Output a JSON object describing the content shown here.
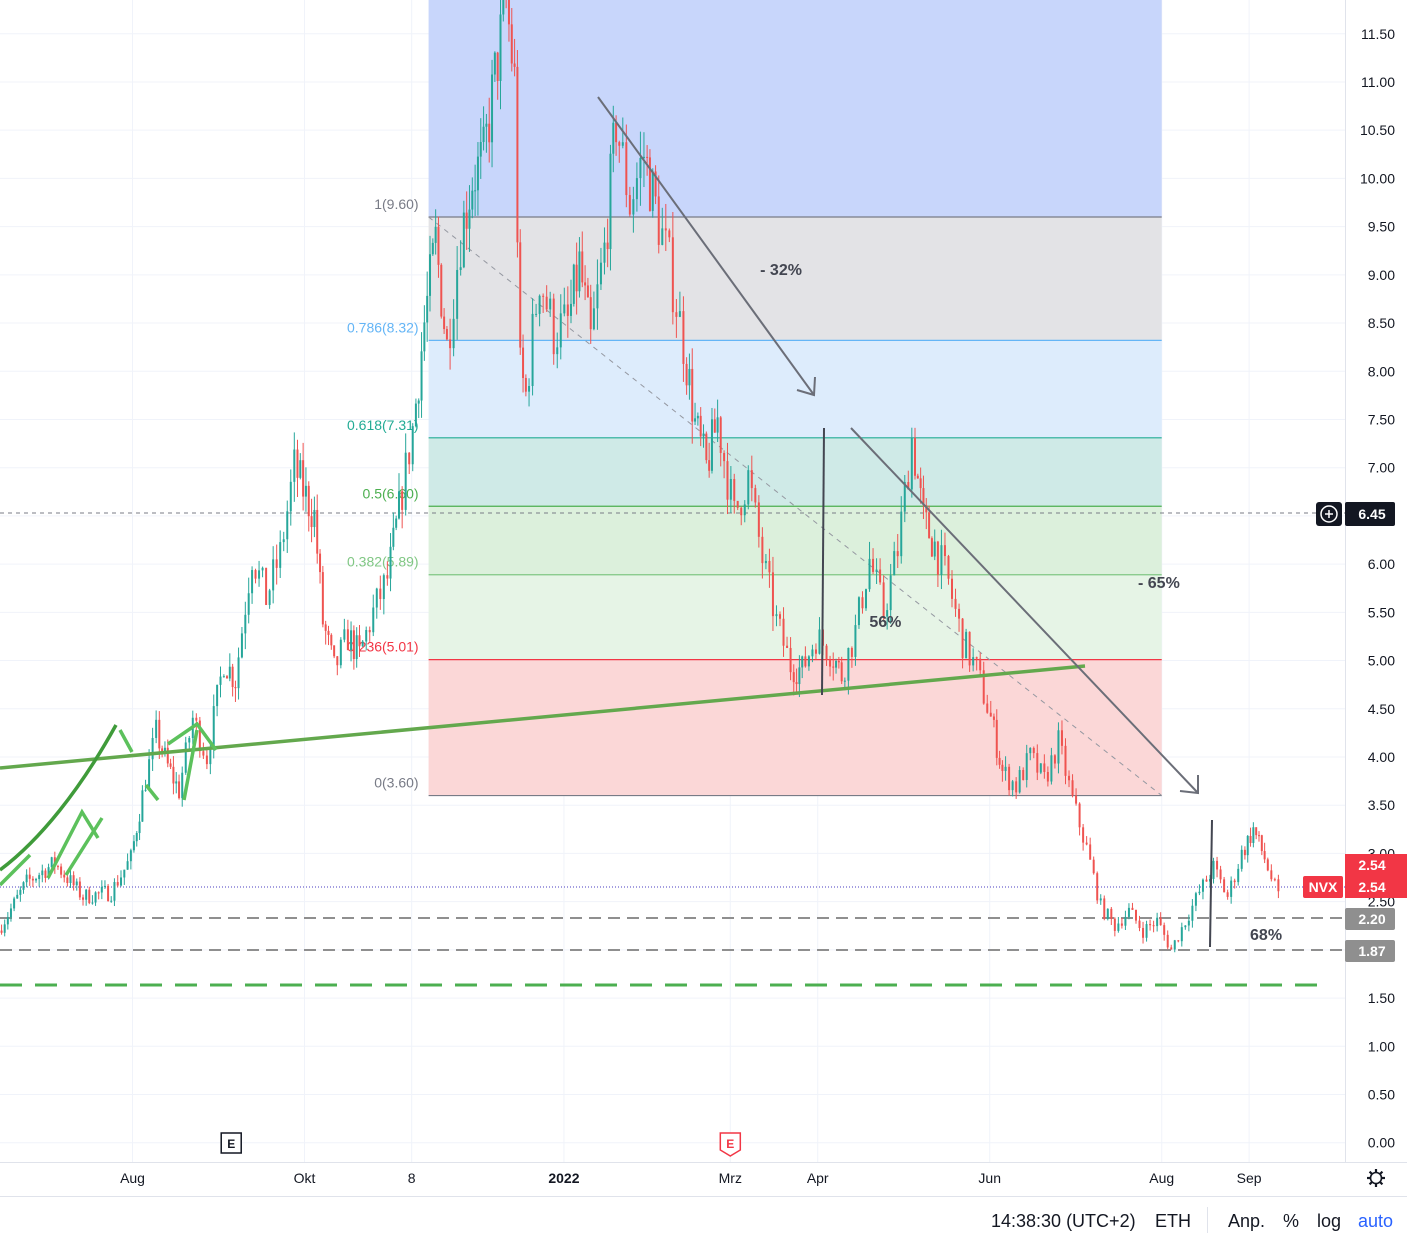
{
  "chart_data": {
    "type": "candlestick",
    "symbol": "NVX",
    "y_axis": {
      "range": [
        -0.2,
        11.85
      ],
      "ticks": [
        "0.00",
        "0.50",
        "1.00",
        "1.50",
        "2.00",
        "2.50",
        "3.00",
        "3.50",
        "4.00",
        "4.50",
        "5.00",
        "5.50",
        "6.00",
        "6.50",
        "7.00",
        "7.50",
        "8.00",
        "8.50",
        "9.00",
        "9.50",
        "10.00",
        "10.50",
        "11.00",
        "11.50"
      ]
    },
    "x_axis": {
      "range": [
        "2021-06-15",
        "2022-10-05"
      ],
      "ticks": [
        {
          "label": "Aug",
          "date": "2021-08-01",
          "bold": false
        },
        {
          "label": "Okt",
          "date": "2021-10-01",
          "bold": false
        },
        {
          "label": "8",
          "date": "2021-11-08",
          "bold": false
        },
        {
          "label": "2022",
          "date": "2022-01-01",
          "bold": true
        },
        {
          "label": "Mrz",
          "date": "2022-03-01",
          "bold": false
        },
        {
          "label": "Apr",
          "date": "2022-04-01",
          "bold": false
        },
        {
          "label": "Jun",
          "date": "2022-06-01",
          "bold": false
        },
        {
          "label": "Aug",
          "date": "2022-08-01",
          "bold": false
        },
        {
          "label": "Sep",
          "date": "2022-09-01",
          "bold": false
        }
      ]
    },
    "price_path": [
      [
        "2021-06-15",
        2.2
      ],
      [
        "2021-06-25",
        2.7
      ],
      [
        "2021-07-05",
        2.9
      ],
      [
        "2021-07-15",
        2.55
      ],
      [
        "2021-07-25",
        2.6
      ],
      [
        "2021-08-01",
        2.95
      ],
      [
        "2021-08-05",
        3.6
      ],
      [
        "2021-08-10",
        4.25
      ],
      [
        "2021-08-14",
        3.9
      ],
      [
        "2021-08-18",
        3.65
      ],
      [
        "2021-08-23",
        4.4
      ],
      [
        "2021-08-28",
        4.0
      ],
      [
        "2021-09-03",
        5.0
      ],
      [
        "2021-09-07",
        4.8
      ],
      [
        "2021-09-13",
        6.1
      ],
      [
        "2021-09-18",
        5.65
      ],
      [
        "2021-09-23",
        6.1
      ],
      [
        "2021-09-28",
        7.0
      ],
      [
        "2021-10-02",
        6.7
      ],
      [
        "2021-10-05",
        6.5
      ],
      [
        "2021-10-08",
        5.4
      ],
      [
        "2021-10-12",
        4.9
      ],
      [
        "2021-10-17",
        5.25
      ],
      [
        "2021-10-21",
        5.05
      ],
      [
        "2021-10-26",
        5.5
      ],
      [
        "2021-10-31",
        5.85
      ],
      [
        "2021-11-04",
        6.55
      ],
      [
        "2021-11-09",
        7.4
      ],
      [
        "2021-11-13",
        8.5
      ],
      [
        "2021-11-17",
        9.35
      ],
      [
        "2021-11-21",
        8.25
      ],
      [
        "2021-11-26",
        9.4
      ],
      [
        "2021-11-30",
        10.0
      ],
      [
        "2021-12-04",
        10.2
      ],
      [
        "2021-12-08",
        11.05
      ],
      [
        "2021-12-12",
        11.85
      ],
      [
        "2021-12-15",
        11.0
      ],
      [
        "2021-12-17",
        8.0
      ],
      [
        "2021-12-19",
        7.75
      ],
      [
        "2021-12-24",
        9.0
      ],
      [
        "2021-12-29",
        8.4
      ],
      [
        "2022-01-03",
        8.5
      ],
      [
        "2022-01-07",
        9.1
      ],
      [
        "2022-01-11",
        8.3
      ],
      [
        "2022-01-16",
        9.25
      ],
      [
        "2022-01-20",
        10.6
      ],
      [
        "2022-01-25",
        9.75
      ],
      [
        "2022-01-30",
        10.25
      ],
      [
        "2022-02-03",
        9.7
      ],
      [
        "2022-02-08",
        9.1
      ],
      [
        "2022-02-13",
        8.3
      ],
      [
        "2022-02-17",
        7.45
      ],
      [
        "2022-02-21",
        7.0
      ],
      [
        "2022-02-25",
        7.5
      ],
      [
        "2022-03-03",
        6.5
      ],
      [
        "2022-03-08",
        6.9
      ],
      [
        "2022-03-13",
        6.05
      ],
      [
        "2022-03-18",
        5.4
      ],
      [
        "2022-03-23",
        4.95
      ],
      [
        "2022-03-27",
        4.9
      ],
      [
        "2022-04-01",
        5.25
      ],
      [
        "2022-04-06",
        5.1
      ],
      [
        "2022-04-10",
        4.85
      ],
      [
        "2022-04-15",
        5.3
      ],
      [
        "2022-04-20",
        6.05
      ],
      [
        "2022-04-25",
        5.5
      ],
      [
        "2022-04-30",
        6.15
      ],
      [
        "2022-05-05",
        7.3
      ],
      [
        "2022-05-09",
        6.45
      ],
      [
        "2022-05-13",
        6.2
      ],
      [
        "2022-05-18",
        5.8
      ],
      [
        "2022-05-23",
        5.2
      ],
      [
        "2022-05-28",
        4.9
      ],
      [
        "2022-06-02",
        4.4
      ],
      [
        "2022-06-06",
        3.85
      ],
      [
        "2022-06-11",
        3.7
      ],
      [
        "2022-06-16",
        4.0
      ],
      [
        "2022-06-21",
        3.75
      ],
      [
        "2022-06-26",
        4.15
      ],
      [
        "2022-07-01",
        3.55
      ],
      [
        "2022-07-06",
        3.05
      ],
      [
        "2022-07-11",
        2.45
      ],
      [
        "2022-07-16",
        2.25
      ],
      [
        "2022-07-21",
        2.4
      ],
      [
        "2022-07-26",
        2.2
      ],
      [
        "2022-07-31",
        2.3
      ],
      [
        "2022-08-05",
        2.0
      ],
      [
        "2022-08-10",
        2.3
      ],
      [
        "2022-08-15",
        2.6
      ],
      [
        "2022-08-20",
        2.85
      ],
      [
        "2022-08-25",
        2.55
      ],
      [
        "2022-08-30",
        3.0
      ],
      [
        "2022-09-03",
        3.25
      ],
      [
        "2022-09-07",
        2.95
      ],
      [
        "2022-09-12",
        2.54
      ]
    ],
    "fibonacci": {
      "start_date": "2021-11-14",
      "end_date": "2022-08-01",
      "levels": [
        {
          "label": "1(9.60)",
          "ratio": 1,
          "price": 9.6,
          "color": "#787b86"
        },
        {
          "label": "0.786(8.32)",
          "ratio": 0.786,
          "price": 8.32,
          "color": "#64b5f6"
        },
        {
          "label": "0.618(7.31)",
          "ratio": 0.618,
          "price": 7.31,
          "color": "#22ab94"
        },
        {
          "label": "0.5(6.60)",
          "ratio": 0.5,
          "price": 6.6,
          "color": "#4caf50"
        },
        {
          "label": "0.382(5.89)",
          "ratio": 0.382,
          "price": 5.89,
          "color": "#81c784"
        },
        {
          "label": "0.236(5.01)",
          "ratio": 0.236,
          "price": 5.01,
          "color": "#f23645"
        },
        {
          "label": "0(3.60)",
          "ratio": 0,
          "price": 3.6,
          "color": "#787b86"
        }
      ],
      "zone_colors": [
        "#c8d6fb",
        "#e3e3e6",
        "#ddecfc",
        "#cfeae7",
        "#dcf0dc",
        "#e6f4e6",
        "#fbd7d7"
      ]
    },
    "annotations": [
      {
        "text": "- 32%",
        "date": "2022-03-19",
        "price": 9.0
      },
      {
        "text": "- 65%",
        "date": "2022-07-31",
        "price": 5.75
      },
      {
        "text": "56%",
        "date": "2022-04-25",
        "price": 5.35
      },
      {
        "text": "68%",
        "date": "2022-09-07",
        "price": 2.1
      }
    ],
    "current_price": "2.54",
    "crosshair_price": "6.45",
    "level_labels": [
      "2.20",
      "1.87"
    ],
    "event_markers": [
      {
        "letter": "E",
        "date": "2021-09-05",
        "style": "dark"
      },
      {
        "letter": "E",
        "date": "2022-03-01",
        "style": "red"
      }
    ],
    "log_scale": false,
    "grid": true
  },
  "status_bar": {
    "time": "14:38:30 (UTC+2)",
    "session": "ETH",
    "adjust": "Anp.",
    "percent": "%",
    "log": "log",
    "auto": "auto"
  }
}
